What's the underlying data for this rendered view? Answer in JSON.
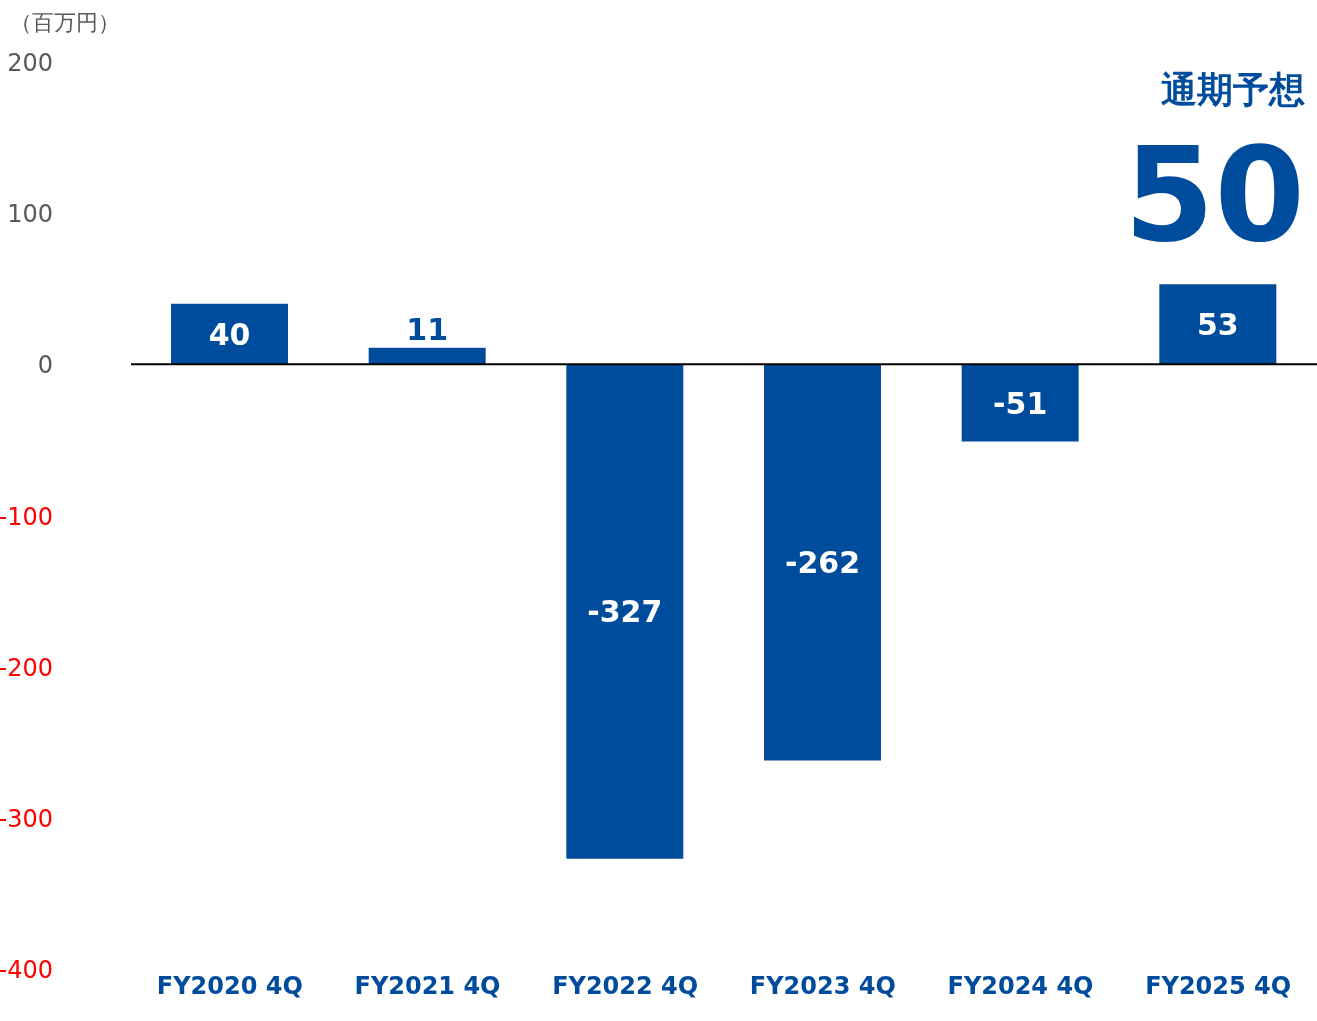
{
  "chart_data": {
    "type": "bar",
    "ylabel": "（百万円）",
    "categories": [
      "FY2020  4Q",
      "FY2021  4Q",
      "FY2022  4Q",
      "FY2023  4Q",
      "FY2024  4Q",
      "FY2025  4Q"
    ],
    "values": [
      40,
      11,
      -327,
      -262,
      -51,
      53
    ],
    "color": "#004c9c",
    "ylim": [
      -400,
      200
    ],
    "yticks": [
      -400,
      -300,
      -200,
      -100,
      0,
      100,
      200
    ],
    "data_labels": true,
    "annotations": [
      "通期予想",
      "50"
    ]
  }
}
